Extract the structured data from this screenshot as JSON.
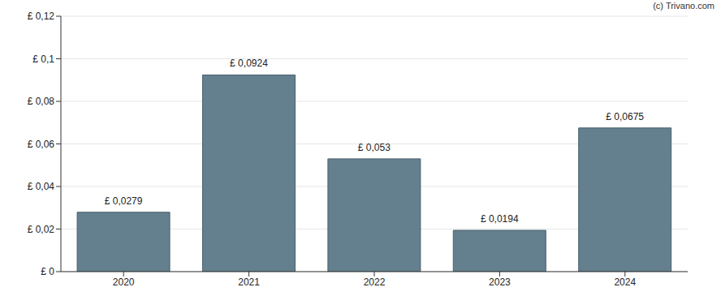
{
  "chart_data": {
    "type": "bar",
    "categories": [
      "2020",
      "2021",
      "2022",
      "2023",
      "2024"
    ],
    "values": [
      0.0279,
      0.0924,
      0.053,
      0.0194,
      0.0675
    ],
    "value_labels": [
      "£ 0,0279",
      "£ 0,0924",
      "£ 0,053",
      "£ 0,0194",
      "£ 0,0675"
    ],
    "color": "#64808f",
    "ylim": [
      0,
      0.12
    ],
    "yticks": [
      {
        "value": 0,
        "label": "£ 0"
      },
      {
        "value": 0.02,
        "label": "£ 0,02"
      },
      {
        "value": 0.04,
        "label": "£ 0,04"
      },
      {
        "value": 0.06,
        "label": "£ 0,06"
      },
      {
        "value": 0.08,
        "label": "£ 0,08"
      },
      {
        "value": 0.1,
        "label": "£ 0,1"
      },
      {
        "value": 0.12,
        "label": "£ 0,12"
      }
    ],
    "grid": true,
    "data_labels": true,
    "annotations": [
      "(c) Trivano.com"
    ]
  }
}
